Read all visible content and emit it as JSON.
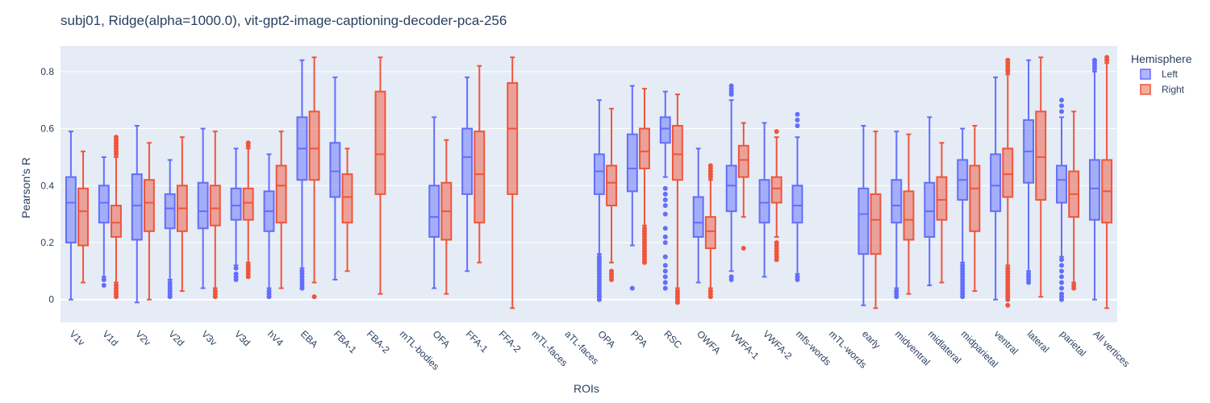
{
  "chart_data": {
    "type": "box",
    "title": "subj01, Ridge(alpha=1000.0), vit-gpt2-image-captioning-decoder-pca-256",
    "xlabel": "ROIs",
    "ylabel": "Pearson's R",
    "ylim": [
      -0.08,
      0.89
    ],
    "yticks": [
      0,
      0.2,
      0.4,
      0.6,
      0.8
    ],
    "legend_title": "Hemisphere",
    "legend_position": "top-right",
    "categories": [
      "V1v",
      "V1d",
      "V2v",
      "V2d",
      "V3v",
      "V3d",
      "hV4",
      "EBA",
      "FBA-1",
      "FBA-2",
      "mTL-bodies",
      "OFA",
      "FFA-1",
      "FFA-2",
      "mTL-faces",
      "aTL-faces",
      "OPA",
      "PPA",
      "RSC",
      "OWFA",
      "VWFA-1",
      "VWFA-2",
      "mfs-words",
      "mTL-words",
      "early",
      "midventral",
      "midlateral",
      "midparietal",
      "ventral",
      "lateral",
      "parietal",
      "All vertices"
    ],
    "series": [
      {
        "name": "Left",
        "color": "#636efa",
        "boxes": [
          {
            "min": 0.0,
            "q1": 0.2,
            "median": 0.34,
            "q3": 0.43,
            "max": 0.59,
            "outliers": []
          },
          {
            "min": 0.08,
            "q1": 0.27,
            "median": 0.34,
            "q3": 0.4,
            "max": 0.5,
            "outliers": [
              0.05,
              0.07
            ]
          },
          {
            "min": -0.01,
            "q1": 0.21,
            "median": 0.33,
            "q3": 0.44,
            "max": 0.61,
            "outliers": []
          },
          {
            "min": 0.07,
            "q1": 0.25,
            "median": 0.32,
            "q3": 0.37,
            "max": 0.49,
            "outliers": [
              0.01,
              0.02,
              0.03,
              0.04,
              0.05,
              0.06
            ]
          },
          {
            "min": 0.04,
            "q1": 0.25,
            "median": 0.31,
            "q3": 0.41,
            "max": 0.6,
            "outliers": []
          },
          {
            "min": 0.12,
            "q1": 0.28,
            "median": 0.33,
            "q3": 0.39,
            "max": 0.53,
            "outliers": [
              0.07,
              0.08,
              0.09,
              0.11
            ]
          },
          {
            "min": 0.04,
            "q1": 0.24,
            "median": 0.31,
            "q3": 0.38,
            "max": 0.51,
            "outliers": [
              0.01,
              0.02,
              0.03
            ]
          },
          {
            "min": 0.11,
            "q1": 0.42,
            "median": 0.53,
            "q3": 0.64,
            "max": 0.84,
            "outliers": [
              0.04,
              0.05,
              0.06,
              0.07,
              0.08,
              0.09,
              0.1
            ]
          },
          {
            "min": 0.07,
            "q1": 0.36,
            "median": 0.45,
            "q3": 0.55,
            "max": 0.78,
            "outliers": []
          },
          null,
          null,
          {
            "min": 0.04,
            "q1": 0.22,
            "median": 0.29,
            "q3": 0.4,
            "max": 0.64,
            "outliers": []
          },
          {
            "min": 0.1,
            "q1": 0.37,
            "median": 0.5,
            "q3": 0.6,
            "max": 0.78,
            "outliers": []
          },
          null,
          null,
          null,
          {
            "min": 0.16,
            "q1": 0.37,
            "median": 0.45,
            "q3": 0.51,
            "max": 0.7,
            "outliers": [
              0.0,
              0.01,
              0.02,
              0.03,
              0.04,
              0.05,
              0.06,
              0.07,
              0.08,
              0.09,
              0.1,
              0.11,
              0.12,
              0.13,
              0.14,
              0.15
            ]
          },
          {
            "min": 0.19,
            "q1": 0.38,
            "median": 0.46,
            "q3": 0.58,
            "max": 0.75,
            "outliers": [
              0.04
            ]
          },
          {
            "min": 0.43,
            "q1": 0.55,
            "median": 0.6,
            "q3": 0.64,
            "max": 0.73,
            "outliers": [
              0.04,
              0.06,
              0.08,
              0.1,
              0.12,
              0.15,
              0.2,
              0.22,
              0.25,
              0.3,
              0.33,
              0.35,
              0.37,
              0.39
            ]
          },
          {
            "min": 0.06,
            "q1": 0.22,
            "median": 0.27,
            "q3": 0.36,
            "max": 0.53,
            "outliers": []
          },
          {
            "min": 0.1,
            "q1": 0.31,
            "median": 0.4,
            "q3": 0.47,
            "max": 0.7,
            "outliers": [
              0.07,
              0.08,
              0.72,
              0.73,
              0.74,
              0.75
            ]
          },
          {
            "min": 0.08,
            "q1": 0.27,
            "median": 0.34,
            "q3": 0.42,
            "max": 0.62,
            "outliers": []
          },
          {
            "min": 0.09,
            "q1": 0.27,
            "median": 0.33,
            "q3": 0.4,
            "max": 0.57,
            "outliers": [
              0.07,
              0.08,
              0.61,
              0.63,
              0.65
            ]
          },
          null,
          {
            "min": -0.02,
            "q1": 0.16,
            "median": 0.3,
            "q3": 0.39,
            "max": 0.61,
            "outliers": []
          },
          {
            "min": 0.04,
            "q1": 0.27,
            "median": 0.33,
            "q3": 0.42,
            "max": 0.59,
            "outliers": [
              0.01,
              0.02,
              0.03
            ]
          },
          {
            "min": 0.05,
            "q1": 0.22,
            "median": 0.31,
            "q3": 0.41,
            "max": 0.64,
            "outliers": []
          },
          {
            "min": 0.13,
            "q1": 0.35,
            "median": 0.42,
            "q3": 0.49,
            "max": 0.6,
            "outliers": [
              0.01,
              0.02,
              0.03,
              0.04,
              0.05,
              0.06,
              0.07,
              0.08,
              0.09,
              0.1,
              0.11,
              0.12
            ]
          },
          {
            "min": 0.0,
            "q1": 0.31,
            "median": 0.4,
            "q3": 0.51,
            "max": 0.78,
            "outliers": []
          },
          {
            "min": 0.1,
            "q1": 0.41,
            "median": 0.52,
            "q3": 0.63,
            "max": 0.84,
            "outliers": [
              0.06,
              0.07,
              0.08,
              0.09
            ]
          },
          {
            "min": 0.15,
            "q1": 0.34,
            "median": 0.42,
            "q3": 0.47,
            "max": 0.64,
            "outliers": [
              0.0,
              0.01,
              0.02,
              0.04,
              0.06,
              0.08,
              0.1,
              0.12,
              0.14,
              0.66,
              0.68,
              0.7
            ]
          },
          {
            "min": 0.0,
            "q1": 0.28,
            "median": 0.39,
            "q3": 0.49,
            "max": 0.8,
            "outliers": [
              0.81,
              0.82,
              0.83,
              0.84
            ]
          }
        ]
      },
      {
        "name": "Right",
        "color": "#ef553b",
        "boxes": [
          {
            "min": 0.06,
            "q1": 0.19,
            "median": 0.31,
            "q3": 0.39,
            "max": 0.52,
            "outliers": []
          },
          {
            "min": 0.06,
            "q1": 0.22,
            "median": 0.27,
            "q3": 0.33,
            "max": 0.5,
            "outliers": [
              0.01,
              0.02,
              0.03,
              0.04,
              0.05,
              0.51,
              0.52,
              0.53,
              0.54,
              0.55,
              0.56,
              0.57
            ]
          },
          {
            "min": 0.0,
            "q1": 0.24,
            "median": 0.34,
            "q3": 0.42,
            "max": 0.55,
            "outliers": []
          },
          {
            "min": 0.03,
            "q1": 0.24,
            "median": 0.32,
            "q3": 0.4,
            "max": 0.57,
            "outliers": []
          },
          {
            "min": 0.04,
            "q1": 0.26,
            "median": 0.32,
            "q3": 0.4,
            "max": 0.59,
            "outliers": [
              0.01,
              0.02,
              0.03
            ]
          },
          {
            "min": 0.13,
            "q1": 0.28,
            "median": 0.34,
            "q3": 0.39,
            "max": 0.53,
            "outliers": [
              0.08,
              0.09,
              0.1,
              0.11,
              0.12,
              0.54,
              0.55
            ]
          },
          {
            "min": 0.04,
            "q1": 0.27,
            "median": 0.4,
            "q3": 0.47,
            "max": 0.59,
            "outliers": []
          },
          {
            "min": 0.06,
            "q1": 0.42,
            "median": 0.53,
            "q3": 0.66,
            "max": 0.85,
            "outliers": [
              0.01
            ]
          },
          {
            "min": 0.1,
            "q1": 0.27,
            "median": 0.36,
            "q3": 0.44,
            "max": 0.53,
            "outliers": []
          },
          {
            "min": 0.02,
            "q1": 0.37,
            "median": 0.51,
            "q3": 0.73,
            "max": 0.85,
            "outliers": []
          },
          null,
          {
            "min": 0.02,
            "q1": 0.21,
            "median": 0.31,
            "q3": 0.41,
            "max": 0.56,
            "outliers": []
          },
          {
            "min": 0.13,
            "q1": 0.27,
            "median": 0.44,
            "q3": 0.59,
            "max": 0.82,
            "outliers": []
          },
          {
            "min": -0.03,
            "q1": 0.37,
            "median": 0.6,
            "q3": 0.76,
            "max": 0.85,
            "outliers": []
          },
          null,
          null,
          {
            "min": 0.13,
            "q1": 0.33,
            "median": 0.41,
            "q3": 0.47,
            "max": 0.67,
            "outliers": [
              0.07,
              0.08,
              0.09,
              0.1
            ]
          },
          {
            "min": 0.26,
            "q1": 0.46,
            "median": 0.52,
            "q3": 0.6,
            "max": 0.74,
            "outliers": [
              0.13,
              0.14,
              0.15,
              0.16,
              0.17,
              0.18,
              0.19,
              0.2,
              0.21,
              0.22,
              0.23,
              0.24,
              0.25
            ]
          },
          {
            "min": 0.04,
            "q1": 0.42,
            "median": 0.51,
            "q3": 0.61,
            "max": 0.72,
            "outliers": [
              -0.01,
              0.0,
              0.01,
              0.02,
              0.03
            ]
          },
          {
            "min": 0.04,
            "q1": 0.18,
            "median": 0.24,
            "q3": 0.29,
            "max": 0.42,
            "outliers": [
              0.01,
              0.02,
              0.03,
              0.43,
              0.44,
              0.45,
              0.46,
              0.47
            ]
          },
          {
            "min": 0.29,
            "q1": 0.43,
            "median": 0.49,
            "q3": 0.54,
            "max": 0.62,
            "outliers": [
              0.18
            ]
          },
          {
            "min": 0.22,
            "q1": 0.34,
            "median": 0.39,
            "q3": 0.43,
            "max": 0.57,
            "outliers": [
              0.14,
              0.15,
              0.16,
              0.17,
              0.18,
              0.19,
              0.2,
              0.59
            ]
          },
          null,
          null,
          {
            "min": -0.03,
            "q1": 0.16,
            "median": 0.28,
            "q3": 0.37,
            "max": 0.59,
            "outliers": []
          },
          {
            "min": 0.02,
            "q1": 0.21,
            "median": 0.28,
            "q3": 0.38,
            "max": 0.58,
            "outliers": []
          },
          {
            "min": 0.06,
            "q1": 0.28,
            "median": 0.35,
            "q3": 0.43,
            "max": 0.55,
            "outliers": []
          },
          {
            "min": 0.03,
            "q1": 0.24,
            "median": 0.39,
            "q3": 0.47,
            "max": 0.61,
            "outliers": []
          },
          {
            "min": 0.12,
            "q1": 0.36,
            "median": 0.44,
            "q3": 0.53,
            "max": 0.79,
            "outliers": [
              -0.02,
              0.0,
              0.01,
              0.02,
              0.03,
              0.04,
              0.05,
              0.06,
              0.07,
              0.08,
              0.09,
              0.1,
              0.11,
              0.8,
              0.81,
              0.82,
              0.83,
              0.84
            ]
          },
          {
            "min": 0.01,
            "q1": 0.35,
            "median": 0.5,
            "q3": 0.66,
            "max": 0.85,
            "outliers": []
          },
          {
            "min": 0.06,
            "q1": 0.29,
            "median": 0.37,
            "q3": 0.45,
            "max": 0.66,
            "outliers": [
              0.04,
              0.05
            ]
          },
          {
            "min": -0.03,
            "q1": 0.27,
            "median": 0.38,
            "q3": 0.49,
            "max": 0.83,
            "outliers": [
              0.84,
              0.85
            ]
          }
        ]
      }
    ]
  }
}
